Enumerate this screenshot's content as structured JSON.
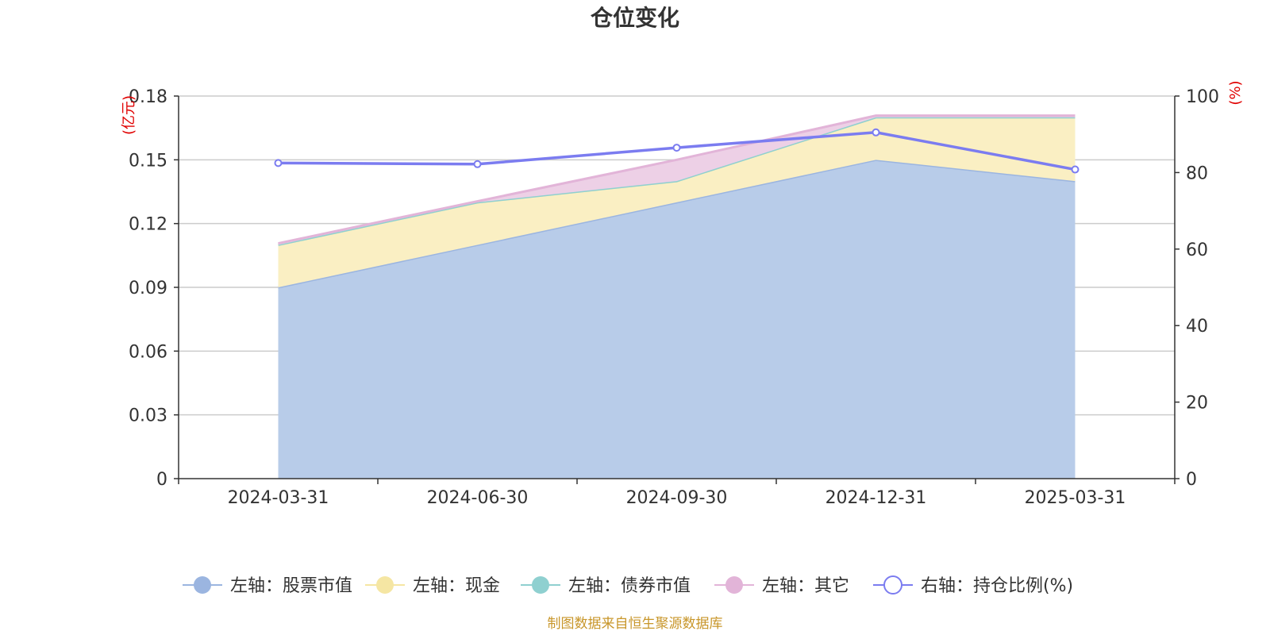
{
  "chart_data": {
    "type": "area",
    "title": "仓位变化",
    "categories": [
      "2024-03-31",
      "2024-06-30",
      "2024-09-30",
      "2024-12-31",
      "2025-03-31"
    ],
    "left_axis": {
      "unit": "(亿元)",
      "ylim": [
        0,
        0.18
      ],
      "ticks": [
        "0",
        "0.03",
        "0.06",
        "0.09",
        "0.12",
        "0.15",
        "0.18"
      ]
    },
    "right_axis": {
      "unit": "(%)",
      "ylim": [
        0,
        100
      ],
      "ticks": [
        "0",
        "20",
        "40",
        "60",
        "80",
        "100"
      ]
    },
    "stacked": true,
    "series": [
      {
        "name": "左轴：股票市值",
        "axis": "left",
        "kind": "area",
        "color": "#9bb5e0",
        "fill": "#b8cce9",
        "values": [
          0.09,
          0.11,
          0.13,
          0.15,
          0.14
        ]
      },
      {
        "name": "左轴：现金",
        "axis": "left",
        "kind": "area",
        "color": "#f5e6a3",
        "fill": "#faefc3",
        "values": [
          0.02,
          0.02,
          0.01,
          0.02,
          0.03
        ]
      },
      {
        "name": "左轴：债券市值",
        "axis": "left",
        "kind": "area",
        "color": "#8fd0d0",
        "fill": "#b5e2e2",
        "values": [
          0,
          0,
          0,
          0,
          0
        ]
      },
      {
        "name": "左轴：其它",
        "axis": "left",
        "kind": "area",
        "color": "#e2b4d8",
        "fill": "#edd0e6",
        "values": [
          0.0007,
          0.0005,
          0.01,
          0.0008,
          0.0008
        ]
      },
      {
        "name": "右轴：持仓比例(%)",
        "axis": "right",
        "kind": "line",
        "color": "#7b7cf0",
        "values": [
          82.5,
          82.2,
          86.5,
          90.5,
          80.8
        ]
      }
    ],
    "grid": true,
    "legend_position": "bottom"
  },
  "source_note": "制图数据来自恒生聚源数据库"
}
